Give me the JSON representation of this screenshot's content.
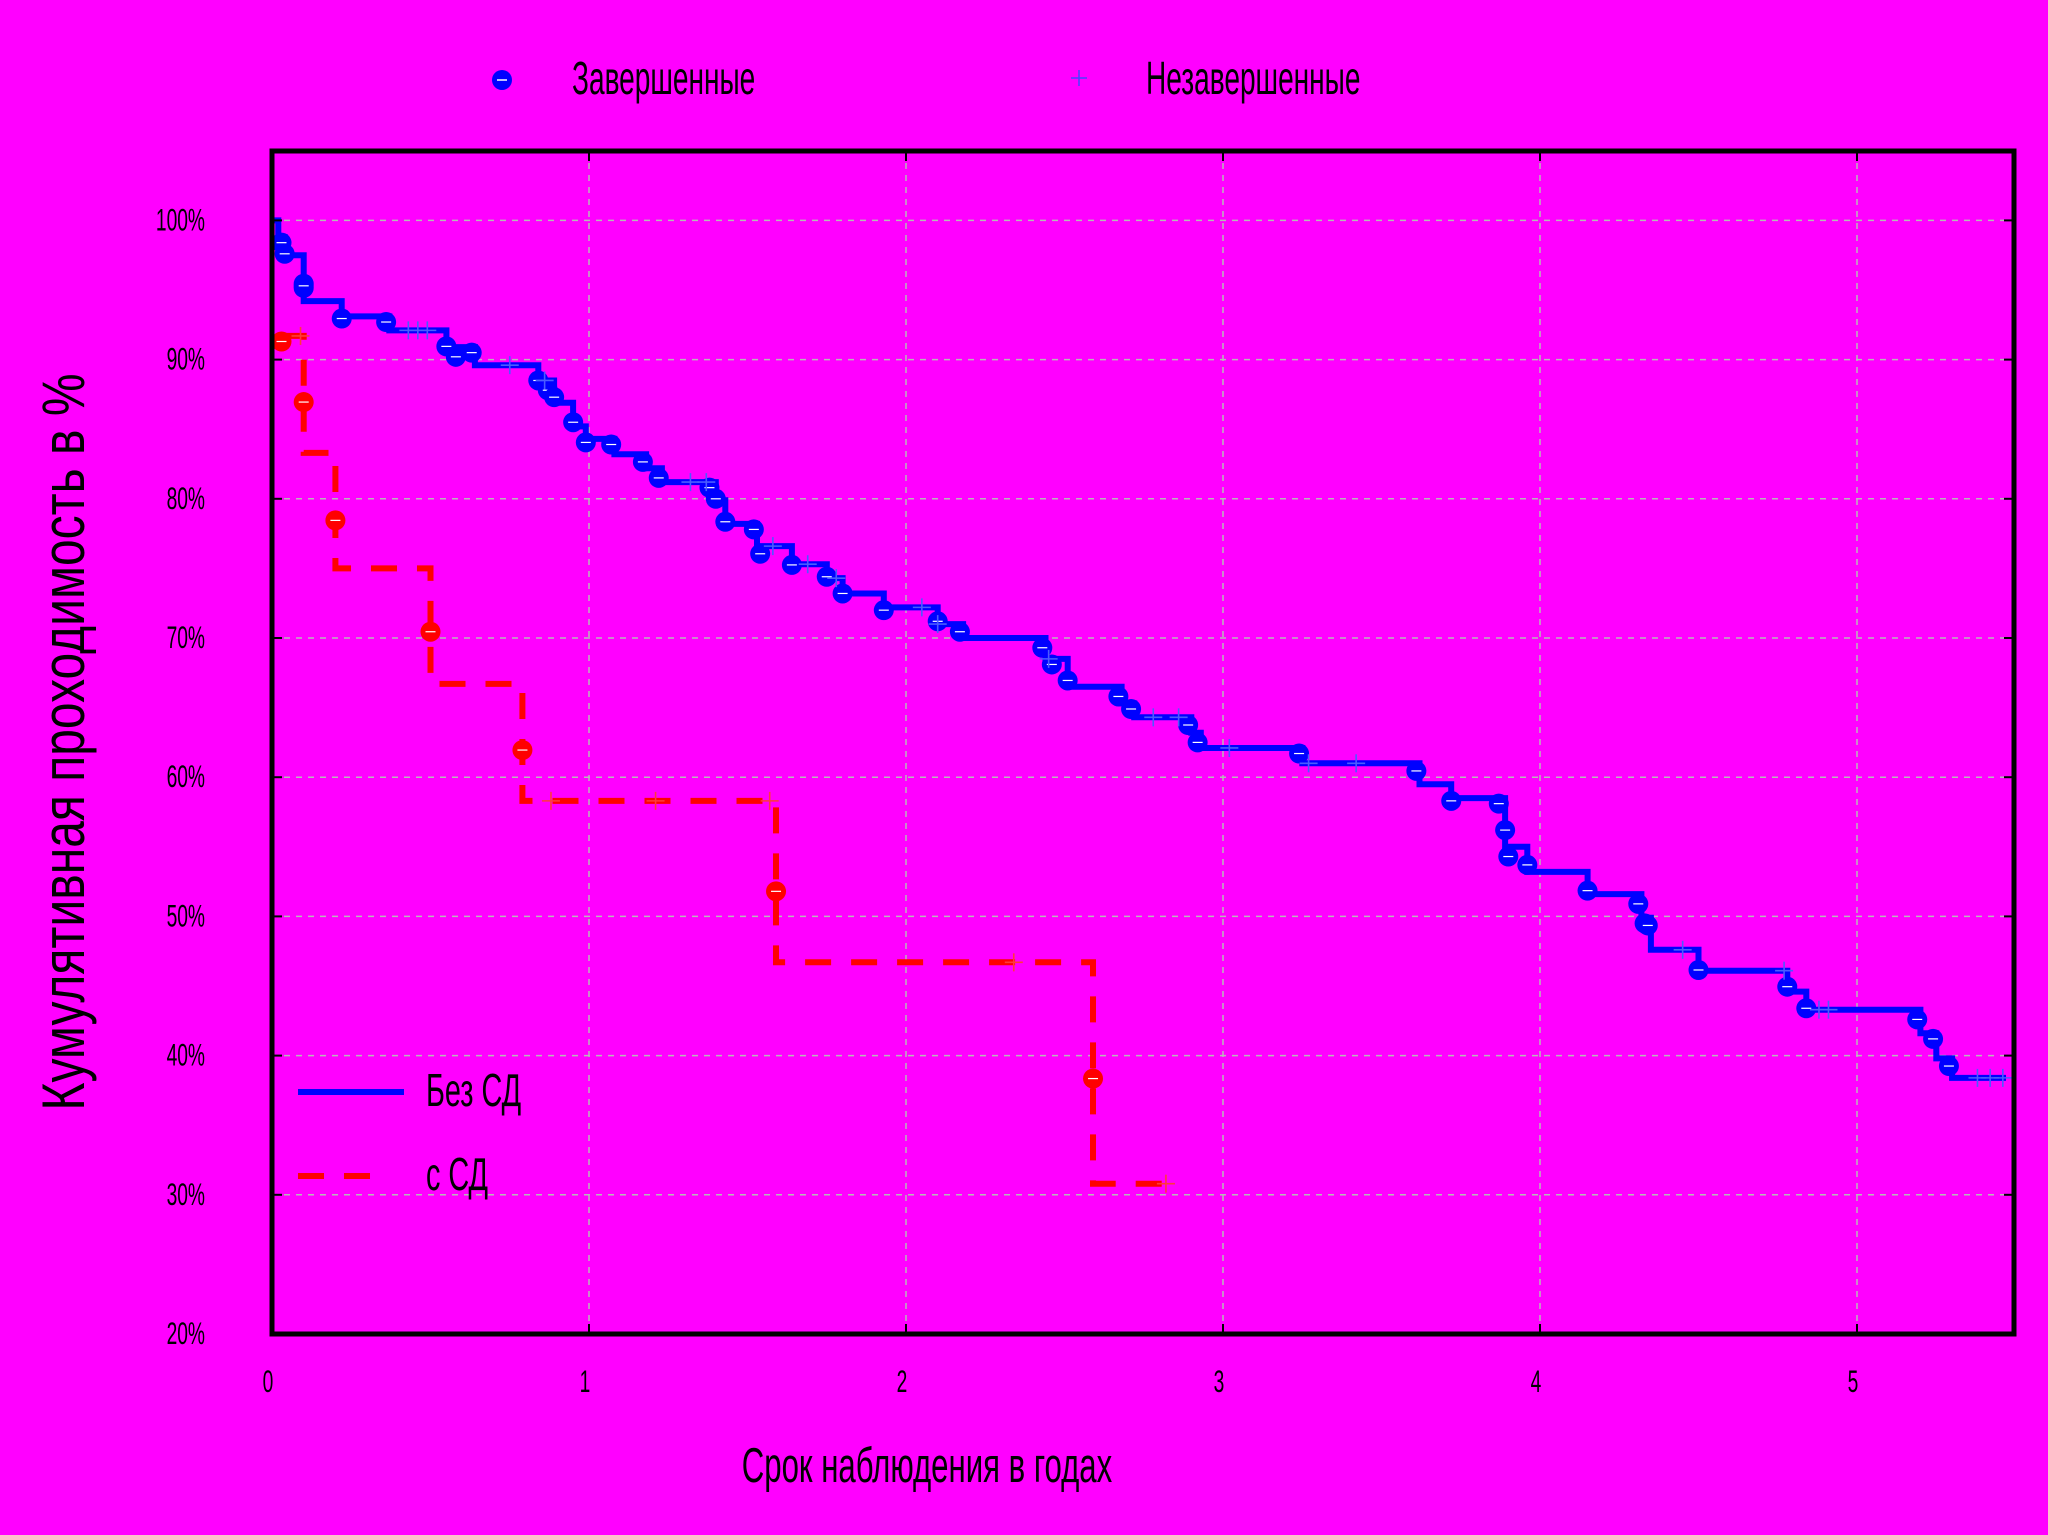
{
  "chart_data": {
    "type": "line",
    "subtype": "kaplan-meier-step",
    "title": "",
    "xlabel": "Срок наблюдения в годах",
    "ylabel": "Кумулятивная проходимость в %",
    "xlim": [
      0,
      5.5
    ],
    "ylim": [
      20,
      105
    ],
    "x_ticks": [
      "0",
      "1",
      "2",
      "3",
      "4",
      "5"
    ],
    "y_ticks": [
      "20%",
      "30%",
      "40%",
      "50%",
      "60%",
      "70%",
      "80%",
      "90%",
      "100%"
    ],
    "grid": true,
    "background_color": "#ff00ff",
    "marker_legend": {
      "position": "top",
      "completed_label": "Завершенные",
      "censored_label": "Незавершенные"
    },
    "line_legend": {
      "position": "bottom-left",
      "entries": [
        "Без СД",
        "с СД"
      ]
    },
    "series": [
      {
        "name": "Без СД",
        "color": "#0000ff",
        "line_style": "solid",
        "steps": [
          [
            0,
            100
          ],
          [
            0.02,
            98.8
          ],
          [
            0.04,
            97.5
          ],
          [
            0.1,
            94.2
          ],
          [
            0.22,
            93.1
          ],
          [
            0.37,
            92.1
          ],
          [
            0.55,
            90.9
          ],
          [
            0.64,
            89.6
          ],
          [
            0.84,
            88.5
          ],
          [
            0.89,
            86.9
          ],
          [
            0.95,
            85.2
          ],
          [
            0.99,
            84.3
          ],
          [
            1.08,
            83.2
          ],
          [
            1.18,
            82.2
          ],
          [
            1.23,
            81.2
          ],
          [
            1.4,
            79.9
          ],
          [
            1.43,
            78.2
          ],
          [
            1.53,
            76.6
          ],
          [
            1.64,
            75.3
          ],
          [
            1.75,
            74.3
          ],
          [
            1.8,
            73.2
          ],
          [
            1.93,
            72.2
          ],
          [
            2.1,
            71.0
          ],
          [
            2.18,
            70.0
          ],
          [
            2.44,
            68.5
          ],
          [
            2.51,
            66.5
          ],
          [
            2.68,
            65.3
          ],
          [
            2.72,
            64.3
          ],
          [
            2.9,
            63.2
          ],
          [
            2.93,
            62.1
          ],
          [
            3.25,
            61.0
          ],
          [
            3.62,
            59.5
          ],
          [
            3.72,
            58.5
          ],
          [
            3.89,
            55.0
          ],
          [
            3.96,
            53.2
          ],
          [
            4.15,
            51.6
          ],
          [
            4.32,
            49.9
          ],
          [
            4.35,
            47.6
          ],
          [
            4.5,
            46.1
          ],
          [
            4.78,
            44.6
          ],
          [
            4.84,
            43.3
          ],
          [
            5.2,
            41.6
          ],
          [
            5.25,
            39.8
          ],
          [
            5.3,
            38.4
          ],
          [
            5.47,
            38.4
          ]
        ],
        "events_x": [
          0.03,
          0.04,
          0.1,
          0.1,
          0.1,
          0.22,
          0.36,
          0.55,
          0.58,
          0.63,
          0.84,
          0.87,
          0.89,
          0.95,
          0.99,
          1.07,
          1.17,
          1.22,
          1.38,
          1.4,
          1.43,
          1.52,
          1.54,
          1.64,
          1.75,
          1.8,
          1.93,
          2.1,
          2.17,
          2.43,
          2.46,
          2.51,
          2.67,
          2.71,
          2.89,
          2.92,
          3.24,
          3.61,
          3.72,
          3.87,
          3.89,
          3.9,
          3.96,
          4.15,
          4.31,
          4.33,
          4.34,
          4.5,
          4.78,
          4.84,
          5.19,
          5.24,
          5.29
        ],
        "censored_x": [
          0.43,
          0.46,
          0.49,
          0.75,
          0.86,
          1.32,
          1.37,
          1.58,
          1.69,
          1.78,
          2.05,
          2.1,
          2.45,
          2.78,
          2.86,
          3.02,
          3.27,
          3.42,
          4.45,
          4.77,
          4.88,
          4.91,
          5.38,
          5.42,
          5.46
        ]
      },
      {
        "name": "с СД",
        "color": "#ff0000",
        "line_style": "dashed",
        "steps": [
          [
            0.03,
            91.7
          ],
          [
            0.1,
            83.3
          ],
          [
            0.2,
            75.0
          ],
          [
            0.5,
            66.7
          ],
          [
            0.79,
            58.3
          ],
          [
            1.59,
            46.7
          ],
          [
            2.59,
            30.8
          ],
          [
            2.83,
            30.8
          ]
        ],
        "events_x": [
          0.03,
          0.1,
          0.2,
          0.5,
          0.79,
          1.59,
          2.59
        ],
        "censored_x": [
          0.09,
          0.88,
          1.21,
          1.57,
          2.34,
          2.82
        ]
      }
    ]
  }
}
